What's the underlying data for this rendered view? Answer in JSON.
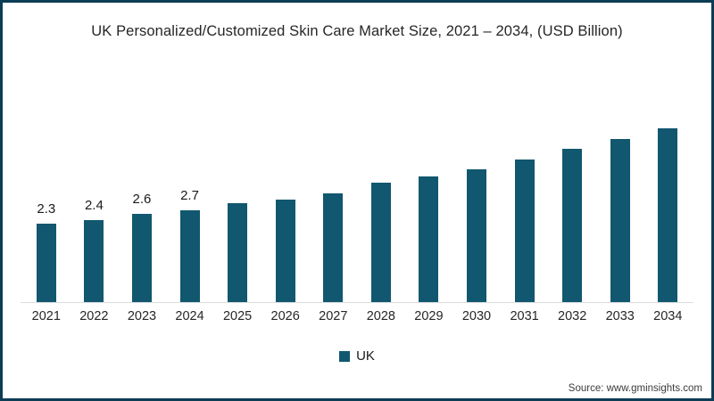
{
  "page": {
    "frame_border_color": "#0d3c55",
    "background_color": "#ffffff"
  },
  "title": "UK Personalized/Customized Skin Care Market Size, 2021 – 2034, (USD Billion)",
  "legend": {
    "label": "UK",
    "swatch_color": "#11576f"
  },
  "source": "Source: www.gminsights.com",
  "chart_data": {
    "type": "bar",
    "title": "UK Personalized/Customized Skin Care Market Size, 2021 – 2034, (USD Billion)",
    "categories": [
      "2021",
      "2022",
      "2023",
      "2024",
      "2025",
      "2026",
      "2027",
      "2028",
      "2029",
      "2030",
      "2031",
      "2032",
      "2033",
      "2034"
    ],
    "series": [
      {
        "name": "UK",
        "values": [
          2.3,
          2.4,
          2.6,
          2.7,
          2.9,
          3.0,
          3.2,
          3.5,
          3.7,
          3.9,
          4.2,
          4.5,
          4.8,
          5.1
        ]
      }
    ],
    "data_labels": [
      "2.3",
      "2.4",
      "2.6",
      "2.7",
      "",
      "",
      "",
      "",
      "",
      "",
      "",
      "",
      "",
      ""
    ],
    "xlabel": "",
    "ylabel": "",
    "ylim": [
      0,
      6
    ],
    "grid": false,
    "y_axis_visible": false,
    "legend_position": "bottom",
    "bar_color": "#11576f",
    "axis_line_color": "#dcdcdc"
  }
}
